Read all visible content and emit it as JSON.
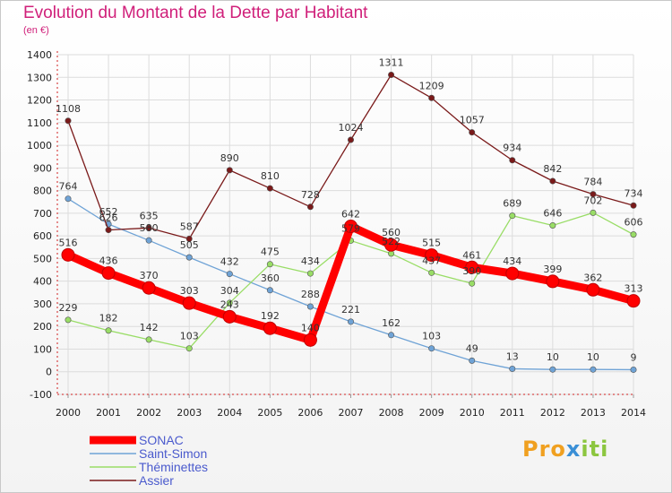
{
  "title": "Evolution du Montant de la Dette par Habitant",
  "subtitle": "(en €)",
  "logo_parts": [
    "Pro",
    "x",
    "iti"
  ],
  "chart_data": {
    "type": "line",
    "x": [
      "2000",
      "2001",
      "2002",
      "2003",
      "2004",
      "2005",
      "2006",
      "2007",
      "2008",
      "2009",
      "2010",
      "2011",
      "2012",
      "2013",
      "2014"
    ],
    "ylim": [
      -100,
      1400
    ],
    "yticks": [
      -100,
      0,
      100,
      200,
      300,
      400,
      500,
      600,
      700,
      800,
      900,
      1000,
      1100,
      1200,
      1300,
      1400
    ],
    "grid": true,
    "legend_position": "bottom-left",
    "series": [
      {
        "name": "SONAC",
        "color": "#ff0000",
        "values": [
          516,
          436,
          370,
          303,
          243,
          192,
          140,
          642,
          560,
          515,
          461,
          434,
          399,
          362,
          313
        ]
      },
      {
        "name": "Saint-Simon",
        "color": "#6fa3d6",
        "values": [
          764,
          652,
          580,
          505,
          432,
          360,
          288,
          221,
          162,
          103,
          49,
          13,
          10,
          10,
          9
        ]
      },
      {
        "name": "Théminettes",
        "color": "#99dd66",
        "values": [
          229,
          182,
          142,
          103,
          304,
          475,
          434,
          579,
          522,
          437,
          390,
          689,
          646,
          702,
          606
        ]
      },
      {
        "name": "Assier",
        "color": "#7a1a1a",
        "values": [
          1108,
          626,
          635,
          587,
          890,
          810,
          728,
          1024,
          1311,
          1209,
          1057,
          934,
          842,
          784,
          734
        ]
      }
    ]
  }
}
